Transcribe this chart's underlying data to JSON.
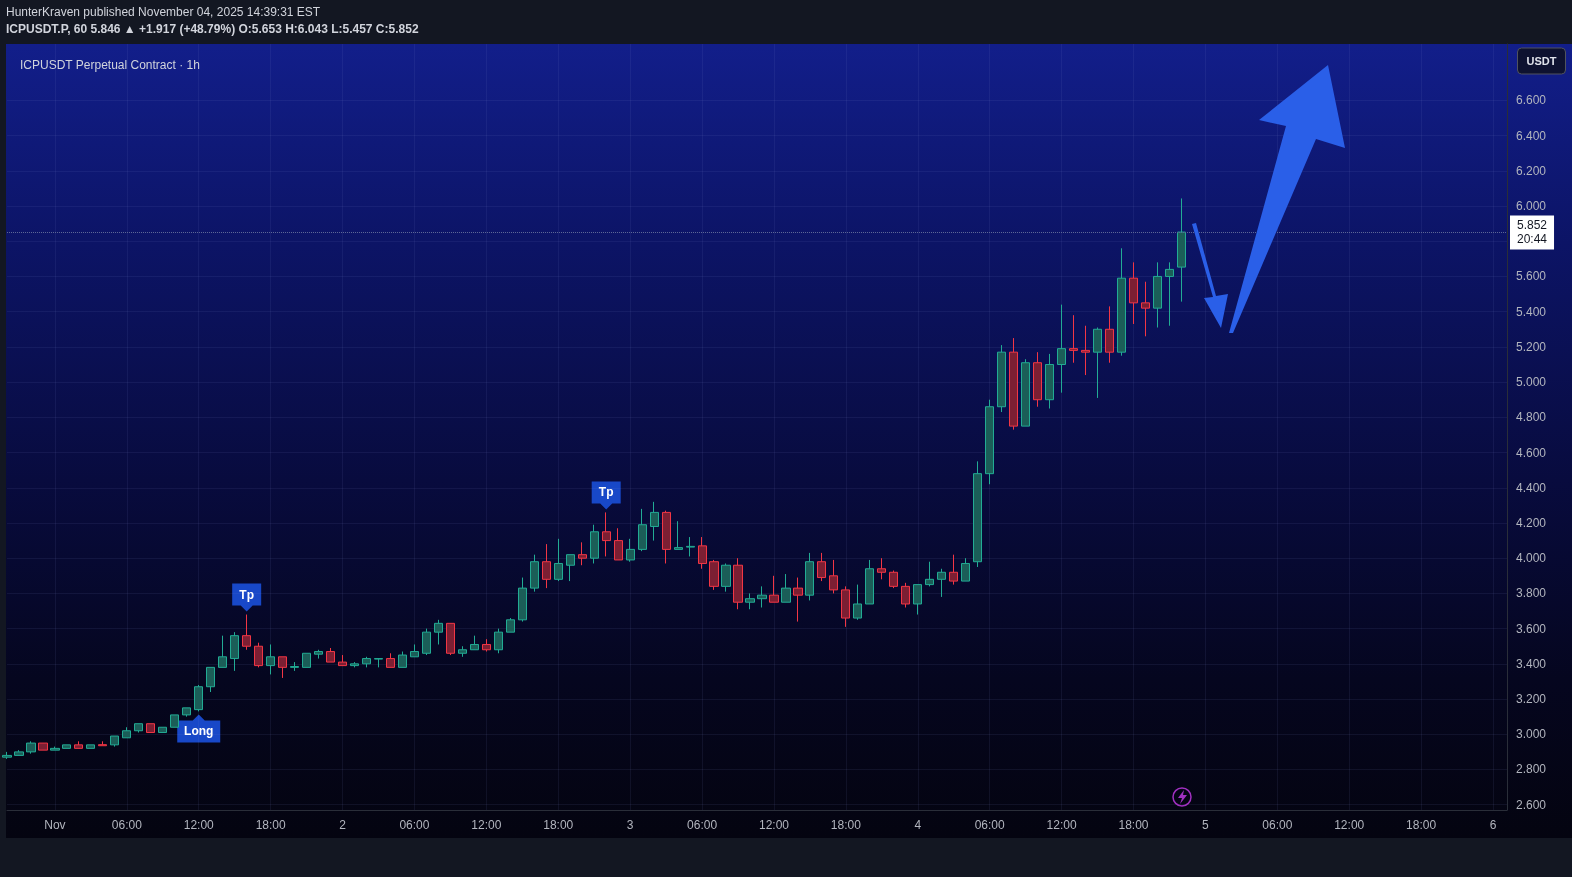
{
  "chart_data": {
    "type": "candlestick",
    "title": "ICPUSDT Perpetual Contract · 1h",
    "subtitle": "ICPUSDT.P, 60 5.846 ▲ +1.917 (+48.79%) O:5.653 H:6.043 L:5.457 C:5.852",
    "ylabel": "USDT",
    "annotations": [
      "HunterKraven published November 04, 2025 14:39:31 EST",
      {
        "text": "Tp",
        "x": "2025-11-01T16:00",
        "y": 3.68
      },
      {
        "text": "Tp",
        "x": "2025-11-02T22:00",
        "y": 4.26
      },
      {
        "text": "Long",
        "x": "2025-11-01T12:00",
        "y": 3.13
      }
    ],
    "x": [
      "2025-10-31T20:00",
      "2025-10-31T21:00",
      "2025-10-31T22:00",
      "2025-10-31T23:00",
      "2025-11-01T00:00",
      "2025-11-01T01:00",
      "2025-11-01T02:00",
      "2025-11-01T03:00",
      "2025-11-01T04:00",
      "2025-11-01T05:00",
      "2025-11-01T06:00",
      "2025-11-01T07:00",
      "2025-11-01T08:00",
      "2025-11-01T09:00",
      "2025-11-01T10:00",
      "2025-11-01T11:00",
      "2025-11-01T12:00",
      "2025-11-01T13:00",
      "2025-11-01T14:00",
      "2025-11-01T15:00",
      "2025-11-01T16:00",
      "2025-11-01T17:00",
      "2025-11-01T18:00",
      "2025-11-01T19:00",
      "2025-11-01T20:00",
      "2025-11-01T21:00",
      "2025-11-01T22:00",
      "2025-11-01T23:00",
      "2025-11-02T00:00",
      "2025-11-02T01:00",
      "2025-11-02T02:00",
      "2025-11-02T03:00",
      "2025-11-02T04:00",
      "2025-11-02T05:00",
      "2025-11-02T06:00",
      "2025-11-02T07:00",
      "2025-11-02T08:00",
      "2025-11-02T09:00",
      "2025-11-02T10:00",
      "2025-11-02T11:00",
      "2025-11-02T12:00",
      "2025-11-02T13:00",
      "2025-11-02T14:00",
      "2025-11-02T15:00",
      "2025-11-02T16:00",
      "2025-11-02T17:00",
      "2025-11-02T18:00",
      "2025-11-02T19:00",
      "2025-11-02T20:00",
      "2025-11-02T21:00",
      "2025-11-02T22:00",
      "2025-11-02T23:00",
      "2025-11-03T00:00",
      "2025-11-03T01:00",
      "2025-11-03T02:00",
      "2025-11-03T03:00",
      "2025-11-03T04:00",
      "2025-11-03T05:00",
      "2025-11-03T06:00",
      "2025-11-03T07:00",
      "2025-11-03T08:00",
      "2025-11-03T09:00",
      "2025-11-03T10:00",
      "2025-11-03T11:00",
      "2025-11-03T12:00",
      "2025-11-03T13:00",
      "2025-11-03T14:00",
      "2025-11-03T15:00",
      "2025-11-03T16:00",
      "2025-11-03T17:00",
      "2025-11-03T18:00",
      "2025-11-03T19:00",
      "2025-11-03T20:00",
      "2025-11-03T21:00",
      "2025-11-03T22:00",
      "2025-11-03T23:00",
      "2025-11-04T00:00",
      "2025-11-04T01:00",
      "2025-11-04T02:00",
      "2025-11-04T03:00",
      "2025-11-04T04:00",
      "2025-11-04T05:00",
      "2025-11-04T06:00",
      "2025-11-04T07:00",
      "2025-11-04T08:00",
      "2025-11-04T09:00",
      "2025-11-04T10:00",
      "2025-11-04T11:00",
      "2025-11-04T12:00",
      "2025-11-04T13:00",
      "2025-11-04T14:00",
      "2025-11-04T15:00",
      "2025-11-04T16:00",
      "2025-11-04T17:00",
      "2025-11-04T18:00",
      "2025-11-04T19:00",
      "2025-11-04T20:00",
      "2025-11-04T21:00",
      "2025-11-04T22:00"
    ],
    "ohlc": [
      [
        2.87,
        2.9,
        2.86,
        2.88
      ],
      [
        2.88,
        2.91,
        2.88,
        2.9
      ],
      [
        2.9,
        2.96,
        2.89,
        2.95
      ],
      [
        2.95,
        2.95,
        2.91,
        2.91
      ],
      [
        2.91,
        2.93,
        2.91,
        2.92
      ],
      [
        2.92,
        2.94,
        2.92,
        2.94
      ],
      [
        2.94,
        2.96,
        2.92,
        2.92
      ],
      [
        2.92,
        2.94,
        2.92,
        2.94
      ],
      [
        2.941,
        2.96,
        2.935,
        2.935
      ],
      [
        2.94,
        2.99,
        2.93,
        2.99
      ],
      [
        2.98,
        3.04,
        2.98,
        3.02
      ],
      [
        3.02,
        3.06,
        3.01,
        3.06
      ],
      [
        3.06,
        3.06,
        3.01,
        3.01
      ],
      [
        3.01,
        3.04,
        3.01,
        3.04
      ],
      [
        3.04,
        3.11,
        3.04,
        3.11
      ],
      [
        3.11,
        3.15,
        3.1,
        3.15
      ],
      [
        3.14,
        3.28,
        3.13,
        3.27
      ],
      [
        3.27,
        3.38,
        3.24,
        3.38
      ],
      [
        3.38,
        3.56,
        3.38,
        3.44
      ],
      [
        3.43,
        3.58,
        3.36,
        3.56
      ],
      [
        3.56,
        3.68,
        3.48,
        3.5
      ],
      [
        3.5,
        3.52,
        3.38,
        3.39
      ],
      [
        3.39,
        3.51,
        3.34,
        3.44
      ],
      [
        3.44,
        3.44,
        3.32,
        3.38
      ],
      [
        3.38,
        3.41,
        3.36,
        3.385
      ],
      [
        3.38,
        3.46,
        3.38,
        3.46
      ],
      [
        3.455,
        3.48,
        3.43,
        3.47
      ],
      [
        3.47,
        3.49,
        3.41,
        3.41
      ],
      [
        3.41,
        3.45,
        3.39,
        3.39
      ],
      [
        3.39,
        3.41,
        3.38,
        3.4
      ],
      [
        3.4,
        3.44,
        3.38,
        3.43
      ],
      [
        3.427,
        3.43,
        3.38,
        3.43
      ],
      [
        3.43,
        3.46,
        3.38,
        3.38
      ],
      [
        3.38,
        3.47,
        3.38,
        3.45
      ],
      [
        3.44,
        3.51,
        3.44,
        3.47
      ],
      [
        3.46,
        3.6,
        3.45,
        3.58
      ],
      [
        3.58,
        3.65,
        3.51,
        3.63
      ],
      [
        3.63,
        3.63,
        3.45,
        3.46
      ],
      [
        3.46,
        3.5,
        3.44,
        3.48
      ],
      [
        3.48,
        3.56,
        3.48,
        3.51
      ],
      [
        3.51,
        3.54,
        3.47,
        3.48
      ],
      [
        3.48,
        3.6,
        3.46,
        3.58
      ],
      [
        3.58,
        3.66,
        3.58,
        3.65
      ],
      [
        3.65,
        3.89,
        3.64,
        3.83
      ],
      [
        3.83,
        4.02,
        3.81,
        3.98
      ],
      [
        3.98,
        4.08,
        3.83,
        3.88
      ],
      [
        3.88,
        4.11,
        3.87,
        3.97
      ],
      [
        3.96,
        4.02,
        3.87,
        4.02
      ],
      [
        4.02,
        4.09,
        3.96,
        4.0
      ],
      [
        4.0,
        4.19,
        3.97,
        4.15
      ],
      [
        4.15,
        4.26,
        4.01,
        4.1
      ],
      [
        4.1,
        4.17,
        3.99,
        3.99
      ],
      [
        3.99,
        4.11,
        3.98,
        4.05
      ],
      [
        4.05,
        4.28,
        4.04,
        4.19
      ],
      [
        4.18,
        4.32,
        4.1,
        4.26
      ],
      [
        4.26,
        4.27,
        3.97,
        4.05
      ],
      [
        4.05,
        4.21,
        4.05,
        4.06
      ],
      [
        4.063,
        4.12,
        4.01,
        4.067
      ],
      [
        4.07,
        4.12,
        3.94,
        3.97
      ],
      [
        3.98,
        3.99,
        3.82,
        3.84
      ],
      [
        3.84,
        3.97,
        3.81,
        3.96
      ],
      [
        3.96,
        4.0,
        3.71,
        3.75
      ],
      [
        3.75,
        3.8,
        3.71,
        3.77
      ],
      [
        3.77,
        3.84,
        3.72,
        3.79
      ],
      [
        3.79,
        3.9,
        3.75,
        3.75
      ],
      [
        3.75,
        3.91,
        3.75,
        3.83
      ],
      [
        3.83,
        3.89,
        3.64,
        3.79
      ],
      [
        3.79,
        4.03,
        3.76,
        3.98
      ],
      [
        3.98,
        4.03,
        3.87,
        3.89
      ],
      [
        3.9,
        3.99,
        3.8,
        3.82
      ],
      [
        3.82,
        3.84,
        3.61,
        3.66
      ],
      [
        3.66,
        3.85,
        3.65,
        3.74
      ],
      [
        3.74,
        3.99,
        3.74,
        3.94
      ],
      [
        3.94,
        4.0,
        3.88,
        3.92
      ],
      [
        3.92,
        3.93,
        3.83,
        3.84
      ],
      [
        3.84,
        3.86,
        3.72,
        3.74
      ],
      [
        3.74,
        3.85,
        3.68,
        3.85
      ],
      [
        3.85,
        3.98,
        3.84,
        3.88
      ],
      [
        3.88,
        3.94,
        3.78,
        3.92
      ],
      [
        3.92,
        4.02,
        3.85,
        3.87
      ],
      [
        3.87,
        4.0,
        3.87,
        3.97
      ],
      [
        3.98,
        4.55,
        3.95,
        4.48
      ],
      [
        4.48,
        4.9,
        4.42,
        4.86
      ],
      [
        4.86,
        5.21,
        4.83,
        5.17
      ],
      [
        5.17,
        5.25,
        4.73,
        4.75
      ],
      [
        4.75,
        5.13,
        4.75,
        5.11
      ],
      [
        5.11,
        5.17,
        4.86,
        4.9
      ],
      [
        4.9,
        5.16,
        4.85,
        5.1
      ],
      [
        5.1,
        5.44,
        4.94,
        5.19
      ],
      [
        5.19,
        5.38,
        5.11,
        5.18
      ],
      [
        5.18,
        5.32,
        5.04,
        5.17
      ],
      [
        5.17,
        5.31,
        4.91,
        5.3
      ],
      [
        5.3,
        5.43,
        5.11,
        5.17
      ],
      [
        5.17,
        5.76,
        5.15,
        5.59
      ],
      [
        5.59,
        5.68,
        5.33,
        5.45
      ],
      [
        5.45,
        5.57,
        5.26,
        5.42
      ],
      [
        5.42,
        5.68,
        5.31,
        5.6
      ],
      [
        5.6,
        5.68,
        5.32,
        5.64
      ],
      [
        5.653,
        6.043,
        5.457,
        5.852
      ]
    ],
    "xlim": [
      "2025-10-31T20:00",
      "2025-11-06T01:10"
    ],
    "ylim": [
      2.57,
      6.92
    ],
    "xticks": [
      {
        "value": "2025-11-01T00:00",
        "label": "Nov"
      },
      {
        "value": "2025-11-01T06:00",
        "label": "06:00"
      },
      {
        "value": "2025-11-01T12:00",
        "label": "12:00"
      },
      {
        "value": "2025-11-01T18:00",
        "label": "18:00"
      },
      {
        "value": "2025-11-02T00:00",
        "label": "2"
      },
      {
        "value": "2025-11-02T06:00",
        "label": "06:00"
      },
      {
        "value": "2025-11-02T12:00",
        "label": "12:00"
      },
      {
        "value": "2025-11-02T18:00",
        "label": "18:00"
      },
      {
        "value": "2025-11-03T00:00",
        "label": "3"
      },
      {
        "value": "2025-11-03T06:00",
        "label": "06:00"
      },
      {
        "value": "2025-11-03T12:00",
        "label": "12:00"
      },
      {
        "value": "2025-11-03T18:00",
        "label": "18:00"
      },
      {
        "value": "2025-11-04T00:00",
        "label": "4"
      },
      {
        "value": "2025-11-04T06:00",
        "label": "06:00"
      },
      {
        "value": "2025-11-04T12:00",
        "label": "12:00"
      },
      {
        "value": "2025-11-04T18:00",
        "label": "18:00"
      },
      {
        "value": "2025-11-05T00:00",
        "label": "5"
      },
      {
        "value": "2025-11-05T06:00",
        "label": "06:00"
      },
      {
        "value": "2025-11-05T12:00",
        "label": "12:00"
      },
      {
        "value": "2025-11-05T18:00",
        "label": "18:00"
      },
      {
        "value": "2025-11-06T00:00",
        "label": "6"
      }
    ],
    "yticks": [
      {
        "value": 2.6,
        "label": "2.600"
      },
      {
        "value": 2.8,
        "label": "2.800"
      },
      {
        "value": 3.0,
        "label": "3.000"
      },
      {
        "value": 3.2,
        "label": "3.200"
      },
      {
        "value": 3.4,
        "label": "3.400"
      },
      {
        "value": 3.6,
        "label": "3.600"
      },
      {
        "value": 3.8,
        "label": "3.800"
      },
      {
        "value": 4.0,
        "label": "4.000"
      },
      {
        "value": 4.2,
        "label": "4.200"
      },
      {
        "value": 4.4,
        "label": "4.400"
      },
      {
        "value": 4.6,
        "label": "4.600"
      },
      {
        "value": 4.8,
        "label": "4.800"
      },
      {
        "value": 5.0,
        "label": "5.000"
      },
      {
        "value": 5.2,
        "label": "5.200"
      },
      {
        "value": 5.4,
        "label": "5.400"
      },
      {
        "value": 5.6,
        "label": "5.600"
      },
      {
        "value": 5.8,
        "label": null
      },
      {
        "value": 6.0,
        "label": "6.000"
      },
      {
        "value": 6.2,
        "label": "6.200"
      },
      {
        "value": 6.4,
        "label": "6.400"
      },
      {
        "value": 6.6,
        "label": "6.600"
      }
    ],
    "ref_lines": [
      {
        "axis": "y",
        "value": 5.852,
        "label": "5.852\n20:44",
        "line_style": "dotted",
        "color": "#5d6796"
      }
    ],
    "grid": true
  }
}
